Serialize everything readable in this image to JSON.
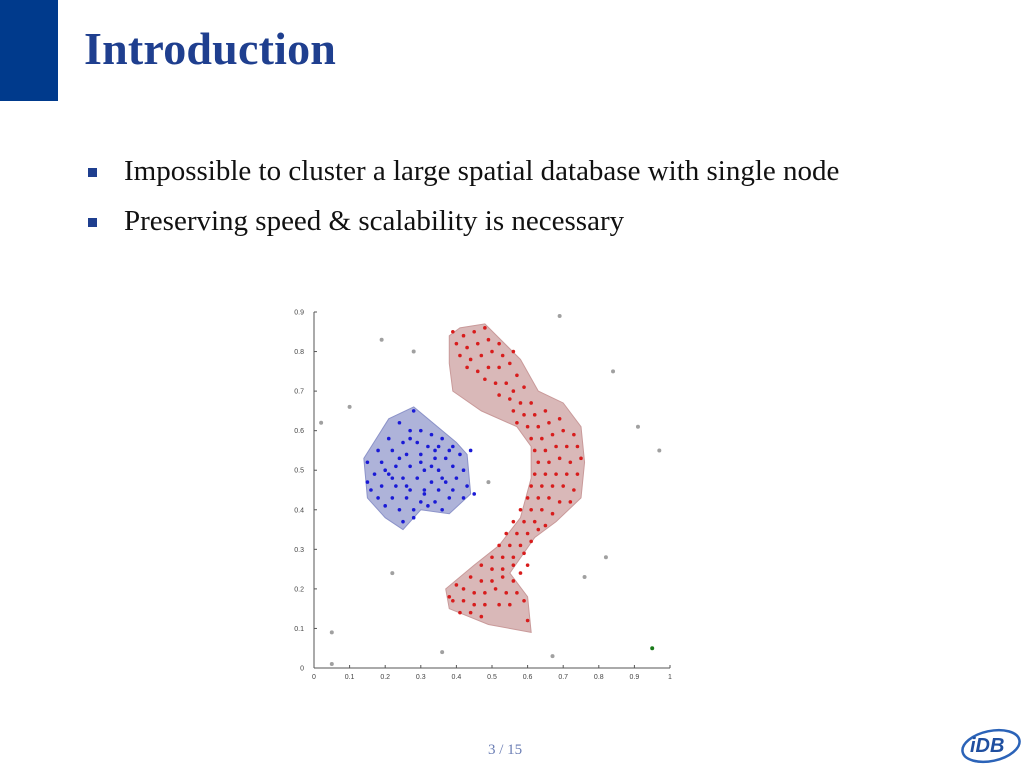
{
  "slide": {
    "title": "Introduction",
    "bullets": [
      "Impossible to cluster a large spatial database with single node",
      "Preserving speed & scalability is necessary"
    ],
    "page_number": "3 / 15",
    "logo_text": "iDB"
  },
  "colors": {
    "accent": "#003a8c",
    "title": "#1f3f8f",
    "cluster_blue": "#1a1ad6",
    "cluster_blue_fill": "#8c93c9",
    "cluster_red": "#d81c1c",
    "cluster_red_fill": "#c99a9a",
    "noise": "#a0a0a0",
    "highlight_green": "#1a7a1a"
  },
  "chart_data": {
    "type": "scatter",
    "title": "",
    "xlabel": "",
    "ylabel": "",
    "xlim": [
      0,
      1
    ],
    "ylim": [
      0,
      0.9
    ],
    "xticks": [
      "0",
      "0.1",
      "0.2",
      "0.3",
      "0.4",
      "0.5",
      "0.6",
      "0.7",
      "0.8",
      "0.9",
      "1"
    ],
    "yticks": [
      "0",
      "0.1",
      "0.2",
      "0.3",
      "0.4",
      "0.5",
      "0.6",
      "0.7",
      "0.8",
      "0.9"
    ],
    "grid": false,
    "clusters": [
      {
        "color": "#1a1ad6",
        "hull": [
          [
            0.28,
            0.66
          ],
          [
            0.4,
            0.57
          ],
          [
            0.43,
            0.54
          ],
          [
            0.44,
            0.44
          ],
          [
            0.38,
            0.39
          ],
          [
            0.3,
            0.4
          ],
          [
            0.25,
            0.35
          ],
          [
            0.2,
            0.38
          ],
          [
            0.15,
            0.43
          ],
          [
            0.14,
            0.53
          ],
          [
            0.21,
            0.63
          ]
        ],
        "points": [
          [
            0.28,
            0.65
          ],
          [
            0.24,
            0.62
          ],
          [
            0.27,
            0.6
          ],
          [
            0.3,
            0.6
          ],
          [
            0.33,
            0.59
          ],
          [
            0.36,
            0.58
          ],
          [
            0.21,
            0.58
          ],
          [
            0.25,
            0.57
          ],
          [
            0.29,
            0.57
          ],
          [
            0.32,
            0.56
          ],
          [
            0.35,
            0.56
          ],
          [
            0.39,
            0.56
          ],
          [
            0.18,
            0.55
          ],
          [
            0.22,
            0.55
          ],
          [
            0.26,
            0.54
          ],
          [
            0.3,
            0.54
          ],
          [
            0.34,
            0.53
          ],
          [
            0.37,
            0.53
          ],
          [
            0.41,
            0.54
          ],
          [
            0.15,
            0.52
          ],
          [
            0.19,
            0.52
          ],
          [
            0.23,
            0.51
          ],
          [
            0.27,
            0.51
          ],
          [
            0.31,
            0.5
          ],
          [
            0.35,
            0.5
          ],
          [
            0.39,
            0.51
          ],
          [
            0.42,
            0.5
          ],
          [
            0.17,
            0.49
          ],
          [
            0.21,
            0.49
          ],
          [
            0.25,
            0.48
          ],
          [
            0.29,
            0.48
          ],
          [
            0.33,
            0.47
          ],
          [
            0.37,
            0.47
          ],
          [
            0.4,
            0.48
          ],
          [
            0.15,
            0.47
          ],
          [
            0.19,
            0.46
          ],
          [
            0.23,
            0.46
          ],
          [
            0.27,
            0.45
          ],
          [
            0.31,
            0.45
          ],
          [
            0.35,
            0.45
          ],
          [
            0.39,
            0.45
          ],
          [
            0.43,
            0.46
          ],
          [
            0.18,
            0.43
          ],
          [
            0.22,
            0.43
          ],
          [
            0.26,
            0.43
          ],
          [
            0.3,
            0.42
          ],
          [
            0.34,
            0.42
          ],
          [
            0.38,
            0.43
          ],
          [
            0.42,
            0.43
          ],
          [
            0.2,
            0.41
          ],
          [
            0.24,
            0.4
          ],
          [
            0.28,
            0.4
          ],
          [
            0.32,
            0.41
          ],
          [
            0.36,
            0.4
          ],
          [
            0.25,
            0.37
          ],
          [
            0.28,
            0.38
          ],
          [
            0.16,
            0.45
          ],
          [
            0.45,
            0.44
          ],
          [
            0.44,
            0.55
          ],
          [
            0.2,
            0.5
          ],
          [
            0.24,
            0.53
          ],
          [
            0.33,
            0.51
          ],
          [
            0.36,
            0.48
          ],
          [
            0.26,
            0.46
          ],
          [
            0.3,
            0.52
          ],
          [
            0.22,
            0.48
          ],
          [
            0.38,
            0.55
          ],
          [
            0.27,
            0.58
          ],
          [
            0.31,
            0.44
          ],
          [
            0.34,
            0.55
          ]
        ]
      },
      {
        "color": "#d81c1c",
        "hull": [
          [
            0.38,
            0.84
          ],
          [
            0.41,
            0.86
          ],
          [
            0.48,
            0.87
          ],
          [
            0.58,
            0.78
          ],
          [
            0.63,
            0.7
          ],
          [
            0.7,
            0.67
          ],
          [
            0.75,
            0.61
          ],
          [
            0.76,
            0.52
          ],
          [
            0.75,
            0.43
          ],
          [
            0.68,
            0.37
          ],
          [
            0.62,
            0.33
          ],
          [
            0.55,
            0.24
          ],
          [
            0.6,
            0.18
          ],
          [
            0.61,
            0.09
          ],
          [
            0.49,
            0.11
          ],
          [
            0.38,
            0.15
          ],
          [
            0.37,
            0.2
          ],
          [
            0.45,
            0.26
          ],
          [
            0.52,
            0.31
          ],
          [
            0.58,
            0.38
          ],
          [
            0.61,
            0.48
          ],
          [
            0.61,
            0.56
          ],
          [
            0.57,
            0.61
          ],
          [
            0.47,
            0.65
          ],
          [
            0.39,
            0.7
          ],
          [
            0.38,
            0.77
          ]
        ],
        "points": [
          [
            0.39,
            0.85
          ],
          [
            0.42,
            0.84
          ],
          [
            0.45,
            0.85
          ],
          [
            0.48,
            0.86
          ],
          [
            0.4,
            0.82
          ],
          [
            0.43,
            0.81
          ],
          [
            0.46,
            0.82
          ],
          [
            0.49,
            0.83
          ],
          [
            0.52,
            0.82
          ],
          [
            0.41,
            0.79
          ],
          [
            0.44,
            0.78
          ],
          [
            0.47,
            0.79
          ],
          [
            0.5,
            0.8
          ],
          [
            0.53,
            0.79
          ],
          [
            0.56,
            0.8
          ],
          [
            0.43,
            0.76
          ],
          [
            0.46,
            0.75
          ],
          [
            0.49,
            0.76
          ],
          [
            0.52,
            0.76
          ],
          [
            0.55,
            0.77
          ],
          [
            0.57,
            0.74
          ],
          [
            0.48,
            0.73
          ],
          [
            0.51,
            0.72
          ],
          [
            0.54,
            0.72
          ],
          [
            0.56,
            0.7
          ],
          [
            0.59,
            0.71
          ],
          [
            0.52,
            0.69
          ],
          [
            0.55,
            0.68
          ],
          [
            0.58,
            0.67
          ],
          [
            0.61,
            0.67
          ],
          [
            0.56,
            0.65
          ],
          [
            0.59,
            0.64
          ],
          [
            0.62,
            0.64
          ],
          [
            0.65,
            0.65
          ],
          [
            0.57,
            0.62
          ],
          [
            0.6,
            0.61
          ],
          [
            0.63,
            0.61
          ],
          [
            0.66,
            0.62
          ],
          [
            0.69,
            0.63
          ],
          [
            0.61,
            0.58
          ],
          [
            0.64,
            0.58
          ],
          [
            0.67,
            0.59
          ],
          [
            0.7,
            0.6
          ],
          [
            0.73,
            0.59
          ],
          [
            0.62,
            0.55
          ],
          [
            0.65,
            0.55
          ],
          [
            0.68,
            0.56
          ],
          [
            0.71,
            0.56
          ],
          [
            0.74,
            0.56
          ],
          [
            0.63,
            0.52
          ],
          [
            0.66,
            0.52
          ],
          [
            0.69,
            0.53
          ],
          [
            0.72,
            0.52
          ],
          [
            0.75,
            0.53
          ],
          [
            0.62,
            0.49
          ],
          [
            0.65,
            0.49
          ],
          [
            0.68,
            0.49
          ],
          [
            0.71,
            0.49
          ],
          [
            0.74,
            0.49
          ],
          [
            0.61,
            0.46
          ],
          [
            0.64,
            0.46
          ],
          [
            0.67,
            0.46
          ],
          [
            0.7,
            0.46
          ],
          [
            0.73,
            0.45
          ],
          [
            0.6,
            0.43
          ],
          [
            0.63,
            0.43
          ],
          [
            0.66,
            0.43
          ],
          [
            0.69,
            0.42
          ],
          [
            0.72,
            0.42
          ],
          [
            0.58,
            0.4
          ],
          [
            0.61,
            0.4
          ],
          [
            0.64,
            0.4
          ],
          [
            0.67,
            0.39
          ],
          [
            0.56,
            0.37
          ],
          [
            0.59,
            0.37
          ],
          [
            0.62,
            0.37
          ],
          [
            0.65,
            0.36
          ],
          [
            0.54,
            0.34
          ],
          [
            0.57,
            0.34
          ],
          [
            0.6,
            0.34
          ],
          [
            0.63,
            0.35
          ],
          [
            0.52,
            0.31
          ],
          [
            0.55,
            0.31
          ],
          [
            0.58,
            0.31
          ],
          [
            0.61,
            0.32
          ],
          [
            0.5,
            0.28
          ],
          [
            0.53,
            0.28
          ],
          [
            0.56,
            0.28
          ],
          [
            0.59,
            0.29
          ],
          [
            0.47,
            0.26
          ],
          [
            0.5,
            0.25
          ],
          [
            0.53,
            0.25
          ],
          [
            0.56,
            0.26
          ],
          [
            0.44,
            0.23
          ],
          [
            0.47,
            0.22
          ],
          [
            0.5,
            0.22
          ],
          [
            0.53,
            0.23
          ],
          [
            0.56,
            0.22
          ],
          [
            0.42,
            0.2
          ],
          [
            0.45,
            0.19
          ],
          [
            0.48,
            0.19
          ],
          [
            0.51,
            0.2
          ],
          [
            0.54,
            0.19
          ],
          [
            0.57,
            0.19
          ],
          [
            0.39,
            0.17
          ],
          [
            0.42,
            0.17
          ],
          [
            0.45,
            0.16
          ],
          [
            0.48,
            0.16
          ],
          [
            0.52,
            0.16
          ],
          [
            0.55,
            0.16
          ],
          [
            0.59,
            0.17
          ],
          [
            0.41,
            0.14
          ],
          [
            0.44,
            0.14
          ],
          [
            0.47,
            0.13
          ],
          [
            0.38,
            0.18
          ],
          [
            0.4,
            0.21
          ],
          [
            0.6,
            0.12
          ],
          [
            0.58,
            0.24
          ],
          [
            0.6,
            0.26
          ]
        ]
      }
    ],
    "noise": [
      [
        0.19,
        0.83
      ],
      [
        0.28,
        0.8
      ],
      [
        0.69,
        0.89
      ],
      [
        0.84,
        0.75
      ],
      [
        0.1,
        0.66
      ],
      [
        0.02,
        0.62
      ],
      [
        0.91,
        0.61
      ],
      [
        0.97,
        0.55
      ],
      [
        0.49,
        0.47
      ],
      [
        0.82,
        0.28
      ],
      [
        0.76,
        0.23
      ],
      [
        0.22,
        0.24
      ],
      [
        0.05,
        0.09
      ],
      [
        0.36,
        0.04
      ],
      [
        0.67,
        0.03
      ],
      [
        0.05,
        0.01
      ]
    ],
    "highlight": [
      [
        0.95,
        0.05
      ]
    ]
  }
}
